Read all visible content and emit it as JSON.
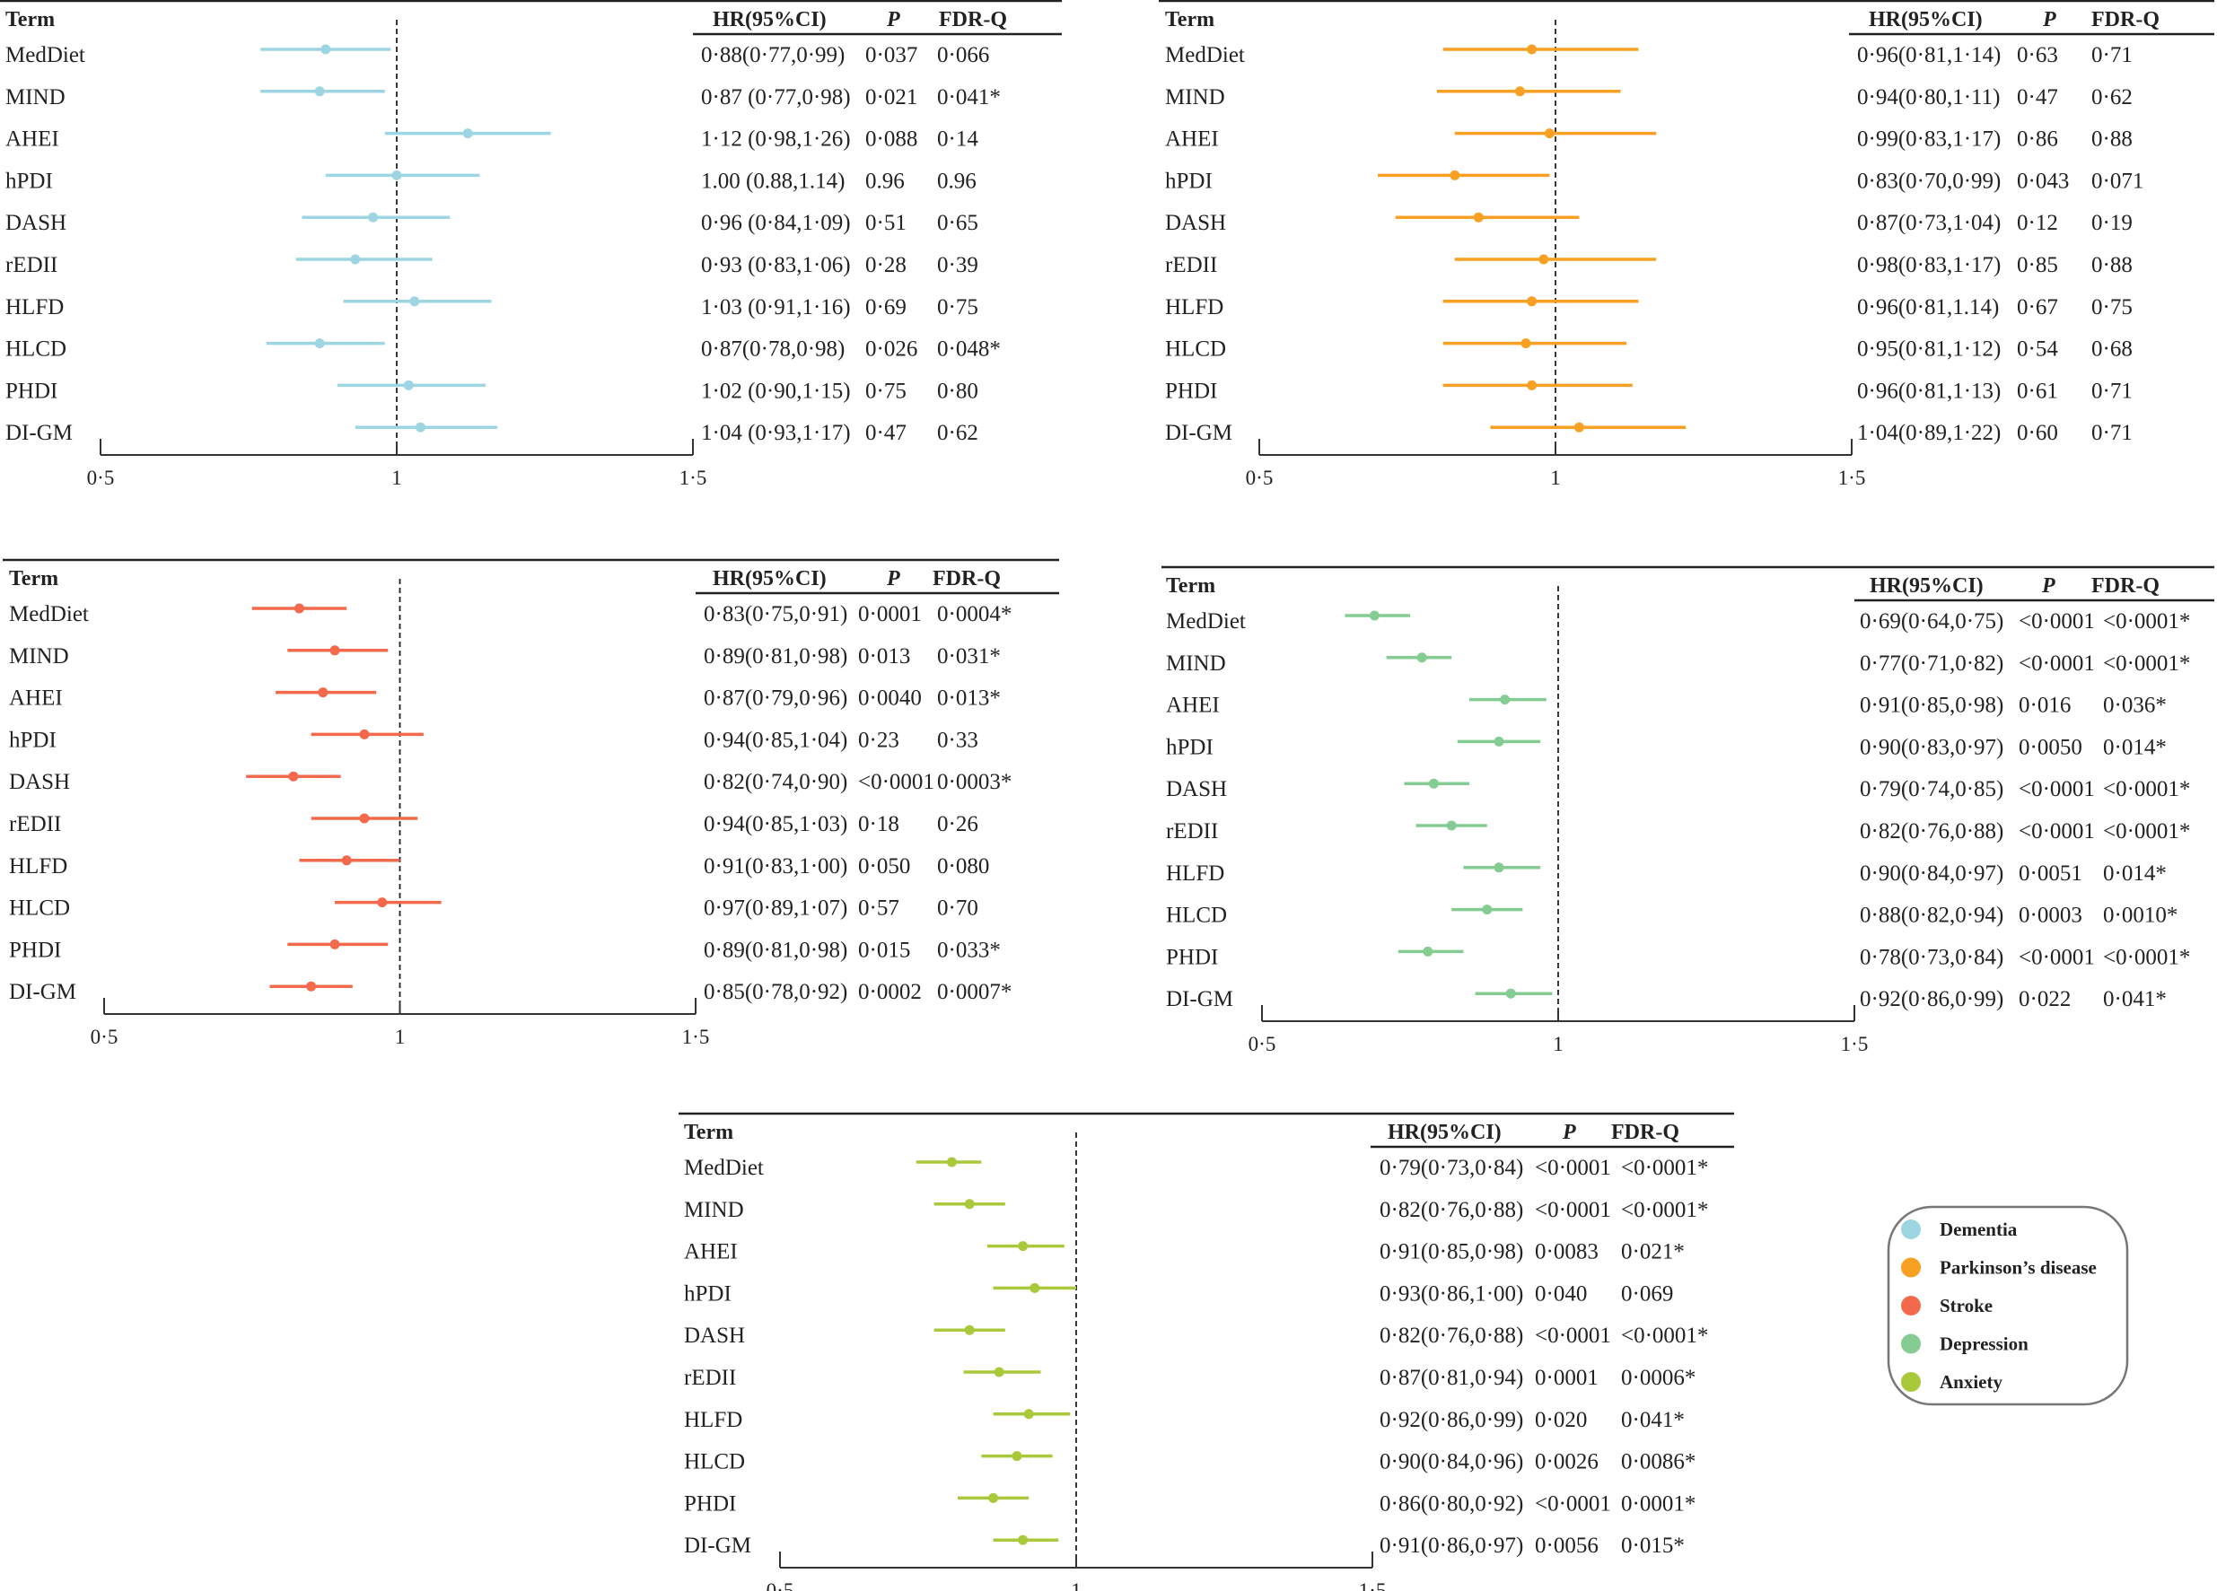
{
  "chart_data": {
    "type": "forest",
    "headers": {
      "term": "Term",
      "hr": "HR(95%CI)",
      "p": "P",
      "fdr": "FDR-Q"
    },
    "xaxis": {
      "range": [
        0.5,
        1.5
      ],
      "ticks": [
        0.5,
        1,
        1.5
      ],
      "tick_labels": [
        "0·5",
        "1",
        "1·5"
      ],
      "reference": 1
    },
    "legend": {
      "placement": "bottom-right"
    },
    "panels": [
      {
        "name": "Dementia",
        "color": "#9dd6e2",
        "rows": [
          {
            "term": "MedDiet",
            "hr": 0.88,
            "lo": 0.77,
            "up": 0.99,
            "hr_text": "0·88(0·77,0·99)",
            "p": "0·037",
            "fdr": "0·066"
          },
          {
            "term": "MIND",
            "hr": 0.87,
            "lo": 0.77,
            "up": 0.98,
            "hr_text": "0·87 (0·77,0·98)",
            "p": "0·021",
            "fdr": "0·041*"
          },
          {
            "term": "AHEI",
            "hr": 1.12,
            "lo": 0.98,
            "up": 1.26,
            "hr_text": "1·12 (0·98,1·26)",
            "p": "0·088",
            "fdr": "0·14"
          },
          {
            "term": "hPDI",
            "hr": 1.0,
            "lo": 0.88,
            "up": 1.14,
            "hr_text": "1.00 (0.88,1.14)",
            "p": "0.96",
            "fdr": "0.96"
          },
          {
            "term": "DASH",
            "hr": 0.96,
            "lo": 0.84,
            "up": 1.09,
            "hr_text": "0·96 (0·84,1·09)",
            "p": "0·51",
            "fdr": "0·65"
          },
          {
            "term": "rEDII",
            "hr": 0.93,
            "lo": 0.83,
            "up": 1.06,
            "hr_text": "0·93 (0·83,1·06)",
            "p": "0·28",
            "fdr": "0·39"
          },
          {
            "term": "HLFD",
            "hr": 1.03,
            "lo": 0.91,
            "up": 1.16,
            "hr_text": "1·03 (0·91,1·16)",
            "p": "0·69",
            "fdr": "0·75"
          },
          {
            "term": "HLCD",
            "hr": 0.87,
            "lo": 0.78,
            "up": 0.98,
            "hr_text": "0·87(0·78,0·98)",
            "p": "0·026",
            "fdr": "0·048*"
          },
          {
            "term": "PHDI",
            "hr": 1.02,
            "lo": 0.9,
            "up": 1.15,
            "hr_text": "1·02 (0·90,1·15)",
            "p": "0·75",
            "fdr": "0·80"
          },
          {
            "term": "DI-GM",
            "hr": 1.04,
            "lo": 0.93,
            "up": 1.17,
            "hr_text": "1·04 (0·93,1·17)",
            "p": "0·47",
            "fdr": "0·62"
          }
        ]
      },
      {
        "name": "Parkinson’s disease",
        "color": "#f7a023",
        "rows": [
          {
            "term": "MedDiet",
            "hr": 0.96,
            "lo": 0.81,
            "up": 1.14,
            "hr_text": "0·96(0·81,1·14)",
            "p": "0·63",
            "fdr": "0·71"
          },
          {
            "term": "MIND",
            "hr": 0.94,
            "lo": 0.8,
            "up": 1.11,
            "hr_text": "0·94(0·80,1·11)",
            "p": "0·47",
            "fdr": "0·62"
          },
          {
            "term": "AHEI",
            "hr": 0.99,
            "lo": 0.83,
            "up": 1.17,
            "hr_text": "0·99(0·83,1·17)",
            "p": "0·86",
            "fdr": "0·88"
          },
          {
            "term": "hPDI",
            "hr": 0.83,
            "lo": 0.7,
            "up": 0.99,
            "hr_text": "0·83(0·70,0·99)",
            "p": "0·043",
            "fdr": "0·071"
          },
          {
            "term": "DASH",
            "hr": 0.87,
            "lo": 0.73,
            "up": 1.04,
            "hr_text": "0·87(0·73,1·04)",
            "p": "0·12",
            "fdr": "0·19"
          },
          {
            "term": "rEDII",
            "hr": 0.98,
            "lo": 0.83,
            "up": 1.17,
            "hr_text": "0·98(0·83,1·17)",
            "p": "0·85",
            "fdr": "0·88"
          },
          {
            "term": "HLFD",
            "hr": 0.96,
            "lo": 0.81,
            "up": 1.14,
            "hr_text": "0·96(0·81,1.14)",
            "p": "0·67",
            "fdr": "0·75"
          },
          {
            "term": "HLCD",
            "hr": 0.95,
            "lo": 0.81,
            "up": 1.12,
            "hr_text": "0·95(0·81,1·12)",
            "p": "0·54",
            "fdr": "0·68"
          },
          {
            "term": "PHDI",
            "hr": 0.96,
            "lo": 0.81,
            "up": 1.13,
            "hr_text": "0·96(0·81,1·13)",
            "p": "0·61",
            "fdr": "0·71"
          },
          {
            "term": "DI-GM",
            "hr": 1.04,
            "lo": 0.89,
            "up": 1.22,
            "hr_text": "1·04(0·89,1·22)",
            "p": "0·60",
            "fdr": "0·71"
          }
        ]
      },
      {
        "name": "Stroke",
        "color": "#f26a4b",
        "rows": [
          {
            "term": "MedDiet",
            "hr": 0.83,
            "lo": 0.75,
            "up": 0.91,
            "hr_text": "0·83(0·75,0·91)",
            "p": "0·0001",
            "fdr": "0·0004*"
          },
          {
            "term": "MIND",
            "hr": 0.89,
            "lo": 0.81,
            "up": 0.98,
            "hr_text": "0·89(0·81,0·98)",
            "p": "0·013",
            "fdr": "0·031*"
          },
          {
            "term": "AHEI",
            "hr": 0.87,
            "lo": 0.79,
            "up": 0.96,
            "hr_text": "0·87(0·79,0·96)",
            "p": "0·0040",
            "fdr": "0·013*"
          },
          {
            "term": "hPDI",
            "hr": 0.94,
            "lo": 0.85,
            "up": 1.04,
            "hr_text": "0·94(0·85,1·04)",
            "p": "0·23",
            "fdr": "0·33"
          },
          {
            "term": "DASH",
            "hr": 0.82,
            "lo": 0.74,
            "up": 0.9,
            "hr_text": "0·82(0·74,0·90)",
            "p": "<0·0001",
            "fdr": "0·0003*"
          },
          {
            "term": "rEDII",
            "hr": 0.94,
            "lo": 0.85,
            "up": 1.03,
            "hr_text": "0·94(0·85,1·03)",
            "p": "0·18",
            "fdr": "0·26"
          },
          {
            "term": "HLFD",
            "hr": 0.91,
            "lo": 0.83,
            "up": 1.0,
            "hr_text": "0·91(0·83,1·00)",
            "p": "0·050",
            "fdr": "0·080"
          },
          {
            "term": "HLCD",
            "hr": 0.97,
            "lo": 0.89,
            "up": 1.07,
            "hr_text": "0·97(0·89,1·07)",
            "p": "0·57",
            "fdr": "0·70"
          },
          {
            "term": "PHDI",
            "hr": 0.89,
            "lo": 0.81,
            "up": 0.98,
            "hr_text": "0·89(0·81,0·98)",
            "p": "0·015",
            "fdr": "0·033*"
          },
          {
            "term": "DI-GM",
            "hr": 0.85,
            "lo": 0.78,
            "up": 0.92,
            "hr_text": "0·85(0·78,0·92)",
            "p": "0·0002",
            "fdr": "0·0007*"
          }
        ]
      },
      {
        "name": "Depression",
        "color": "#85cc93",
        "rows": [
          {
            "term": "MedDiet",
            "hr": 0.69,
            "lo": 0.64,
            "up": 0.75,
            "hr_text": "0·69(0·64,0·75)",
            "p": "<0·0001",
            "fdr": "<0·0001*"
          },
          {
            "term": "MIND",
            "hr": 0.77,
            "lo": 0.71,
            "up": 0.82,
            "hr_text": "0·77(0·71,0·82)",
            "p": "<0·0001",
            "fdr": "<0·0001*"
          },
          {
            "term": "AHEI",
            "hr": 0.91,
            "lo": 0.85,
            "up": 0.98,
            "hr_text": "0·91(0·85,0·98)",
            "p": "0·016",
            "fdr": "0·036*"
          },
          {
            "term": "hPDI",
            "hr": 0.9,
            "lo": 0.83,
            "up": 0.97,
            "hr_text": "0·90(0·83,0·97)",
            "p": "0·0050",
            "fdr": "0·014*"
          },
          {
            "term": "DASH",
            "hr": 0.79,
            "lo": 0.74,
            "up": 0.85,
            "hr_text": "0·79(0·74,0·85)",
            "p": "<0·0001",
            "fdr": "<0·0001*"
          },
          {
            "term": "rEDII",
            "hr": 0.82,
            "lo": 0.76,
            "up": 0.88,
            "hr_text": "0·82(0·76,0·88)",
            "p": "<0·0001",
            "fdr": "<0·0001*"
          },
          {
            "term": "HLFD",
            "hr": 0.9,
            "lo": 0.84,
            "up": 0.97,
            "hr_text": "0·90(0·84,0·97)",
            "p": "0·0051",
            "fdr": "0·014*"
          },
          {
            "term": "HLCD",
            "hr": 0.88,
            "lo": 0.82,
            "up": 0.94,
            "hr_text": "0·88(0·82,0·94)",
            "p": "0·0003",
            "fdr": "0·0010*"
          },
          {
            "term": "PHDI",
            "hr": 0.78,
            "lo": 0.73,
            "up": 0.84,
            "hr_text": "0·78(0·73,0·84)",
            "p": "<0·0001",
            "fdr": "<0·0001*"
          },
          {
            "term": "DI-GM",
            "hr": 0.92,
            "lo": 0.86,
            "up": 0.99,
            "hr_text": "0·92(0·86,0·99)",
            "p": "0·022",
            "fdr": "0·041*"
          }
        ]
      },
      {
        "name": "Anxiety",
        "color": "#a9c93b",
        "rows": [
          {
            "term": "MedDiet",
            "hr": 0.79,
            "lo": 0.73,
            "up": 0.84,
            "hr_text": "0·79(0·73,0·84)",
            "p": "<0·0001",
            "fdr": "<0·0001*"
          },
          {
            "term": "MIND",
            "hr": 0.82,
            "lo": 0.76,
            "up": 0.88,
            "hr_text": "0·82(0·76,0·88)",
            "p": "<0·0001",
            "fdr": "<0·0001*"
          },
          {
            "term": "AHEI",
            "hr": 0.91,
            "lo": 0.85,
            "up": 0.98,
            "hr_text": "0·91(0·85,0·98)",
            "p": "0·0083",
            "fdr": "0·021*"
          },
          {
            "term": "hPDI",
            "hr": 0.93,
            "lo": 0.86,
            "up": 1.0,
            "hr_text": "0·93(0·86,1·00)",
            "p": "0·040",
            "fdr": "0·069"
          },
          {
            "term": "DASH",
            "hr": 0.82,
            "lo": 0.76,
            "up": 0.88,
            "hr_text": "0·82(0·76,0·88)",
            "p": "<0·0001",
            "fdr": "<0·0001*"
          },
          {
            "term": "rEDII",
            "hr": 0.87,
            "lo": 0.81,
            "up": 0.94,
            "hr_text": "0·87(0·81,0·94)",
            "p": "0·0001",
            "fdr": "0·0006*"
          },
          {
            "term": "HLFD",
            "hr": 0.92,
            "lo": 0.86,
            "up": 0.99,
            "hr_text": "0·92(0·86,0·99)",
            "p": "0·020",
            "fdr": "0·041*"
          },
          {
            "term": "HLCD",
            "hr": 0.9,
            "lo": 0.84,
            "up": 0.96,
            "hr_text": "0·90(0·84,0·96)",
            "p": "0·0026",
            "fdr": "0·0086*"
          },
          {
            "term": "PHDI",
            "hr": 0.86,
            "lo": 0.8,
            "up": 0.92,
            "hr_text": "0·86(0·80,0·92)",
            "p": "<0·0001",
            "fdr": "0·0001*"
          },
          {
            "term": "DI-GM",
            "hr": 0.91,
            "lo": 0.86,
            "up": 0.97,
            "hr_text": "0·91(0·86,0·97)",
            "p": "0·0056",
            "fdr": "0·015*"
          }
        ]
      }
    ]
  }
}
